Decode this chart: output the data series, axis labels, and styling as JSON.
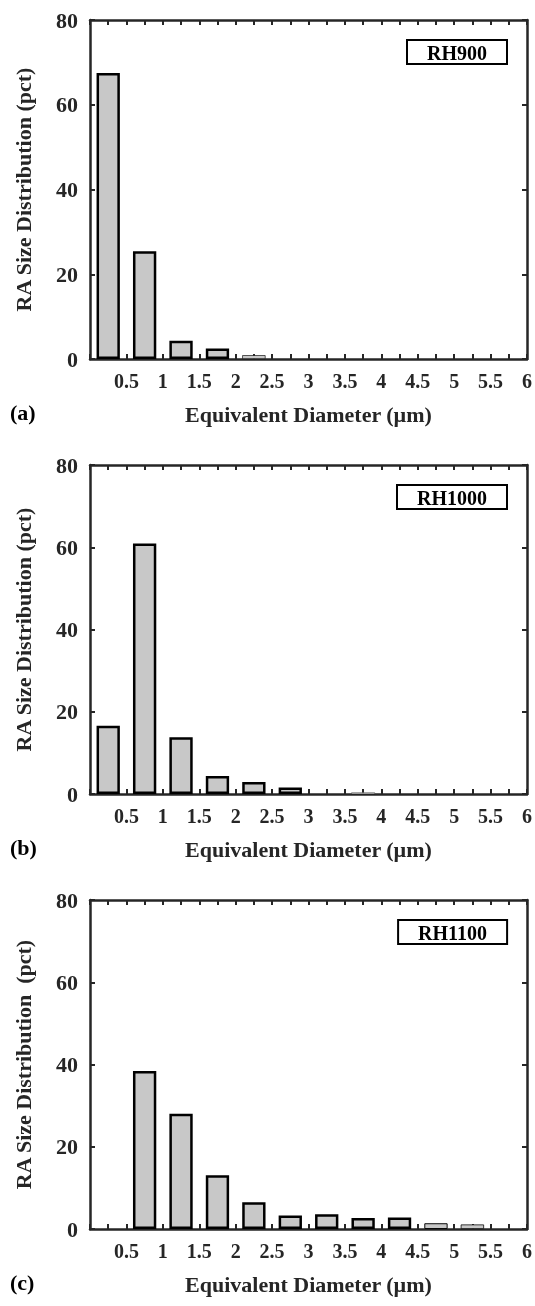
{
  "chart_data": [
    {
      "type": "bar",
      "title": "RH900",
      "annotations": [
        "(a)"
      ],
      "xlabel": "Equivalent Diameter (µm)",
      "ylabel": "RA Size Distribution (pct)",
      "x": [
        0.25,
        0.75,
        1.25,
        1.75,
        2.25,
        2.75,
        3.25,
        3.75,
        4.25,
        4.75,
        5.25,
        5.75
      ],
      "values": [
        67.5,
        25.4,
        4.3,
        2.5,
        0.9,
        0,
        0,
        0,
        0,
        0,
        0,
        0
      ],
      "color": "#c8c8c8",
      "xlim": [
        0,
        6
      ],
      "xticks": [
        {
          "value": 0,
          "label": null
        },
        {
          "value": 0.25,
          "label": null
        },
        0.5,
        {
          "value": 0.75,
          "label": null
        },
        1,
        {
          "value": 1.25,
          "label": null
        },
        1.5,
        {
          "value": 1.75,
          "label": null
        },
        2,
        {
          "value": 2.25,
          "label": null
        },
        2.5,
        {
          "value": 2.75,
          "label": null
        },
        3,
        {
          "value": 3.25,
          "label": null
        },
        3.5,
        {
          "value": 3.75,
          "label": null
        },
        4,
        {
          "value": 4.25,
          "label": null
        },
        4.5,
        {
          "value": 4.75,
          "label": null
        },
        5,
        {
          "value": 5.25,
          "label": null
        },
        5.5,
        {
          "value": 5.75,
          "label": null
        },
        6
      ],
      "ylim": [
        0,
        80
      ],
      "yticks": [
        0,
        20,
        40,
        60,
        80
      ],
      "grid": false
    },
    {
      "type": "bar",
      "title": "RH1000",
      "annotations": [
        "(b)"
      ],
      "xlabel": "Equivalent Diameter (µm)",
      "ylabel": "RA Size Distribution (pct)",
      "x": [
        0.25,
        0.75,
        1.25,
        1.75,
        2.25,
        2.75,
        3.25,
        3.75,
        4.25,
        4.75,
        5.25,
        5.75
      ],
      "values": [
        16.6,
        60.9,
        13.8,
        4.4,
        2.9,
        1.6,
        0,
        0.4,
        0,
        0,
        0,
        0
      ],
      "color": "#c8c8c8",
      "xlim": [
        0,
        6
      ],
      "xticks": [
        {
          "value": 0,
          "label": null
        },
        {
          "value": 0.25,
          "label": null
        },
        0.5,
        {
          "value": 0.75,
          "label": null
        },
        1,
        {
          "value": 1.25,
          "label": null
        },
        1.5,
        {
          "value": 1.75,
          "label": null
        },
        2,
        {
          "value": 2.25,
          "label": null
        },
        2.5,
        {
          "value": 2.75,
          "label": null
        },
        3,
        {
          "value": 3.25,
          "label": null
        },
        3.5,
        {
          "value": 3.75,
          "label": null
        },
        4,
        {
          "value": 4.25,
          "label": null
        },
        4.5,
        {
          "value": 4.75,
          "label": null
        },
        5,
        {
          "value": 5.25,
          "label": null
        },
        5.5,
        {
          "value": 5.75,
          "label": null
        },
        6
      ],
      "ylim": [
        0,
        80
      ],
      "yticks": [
        0,
        20,
        40,
        60,
        80
      ],
      "grid": false
    },
    {
      "type": "bar",
      "title": "RH1100",
      "annotations": [
        "(c)"
      ],
      "xlabel": "Equivalent Diameter (µm)",
      "ylabel": "RA Size Distribution  (pct)",
      "x": [
        0.25,
        0.75,
        1.25,
        1.75,
        2.25,
        2.75,
        3.25,
        3.75,
        4.25,
        4.75,
        5.25,
        5.75
      ],
      "values": [
        0,
        38.4,
        28.0,
        13.1,
        6.5,
        3.3,
        3.6,
        2.7,
        2.8,
        1.4,
        1.1,
        0
      ],
      "color": "#c8c8c8",
      "xlim": [
        0,
        6
      ],
      "xticks": [
        {
          "value": 0,
          "label": null
        },
        {
          "value": 0.25,
          "label": null
        },
        0.5,
        {
          "value": 0.75,
          "label": null
        },
        1,
        {
          "value": 1.25,
          "label": null
        },
        1.5,
        {
          "value": 1.75,
          "label": null
        },
        2,
        {
          "value": 2.25,
          "label": null
        },
        2.5,
        {
          "value": 2.75,
          "label": null
        },
        3,
        {
          "value": 3.25,
          "label": null
        },
        3.5,
        {
          "value": 3.75,
          "label": null
        },
        4,
        {
          "value": 4.25,
          "label": null
        },
        4.5,
        {
          "value": 4.75,
          "label": null
        },
        5,
        {
          "value": 5.25,
          "label": null
        },
        5.5,
        {
          "value": 5.75,
          "label": null
        },
        6
      ],
      "ylim": [
        0,
        80
      ],
      "yticks": [
        0,
        20,
        40,
        60,
        80
      ],
      "grid": false
    }
  ]
}
